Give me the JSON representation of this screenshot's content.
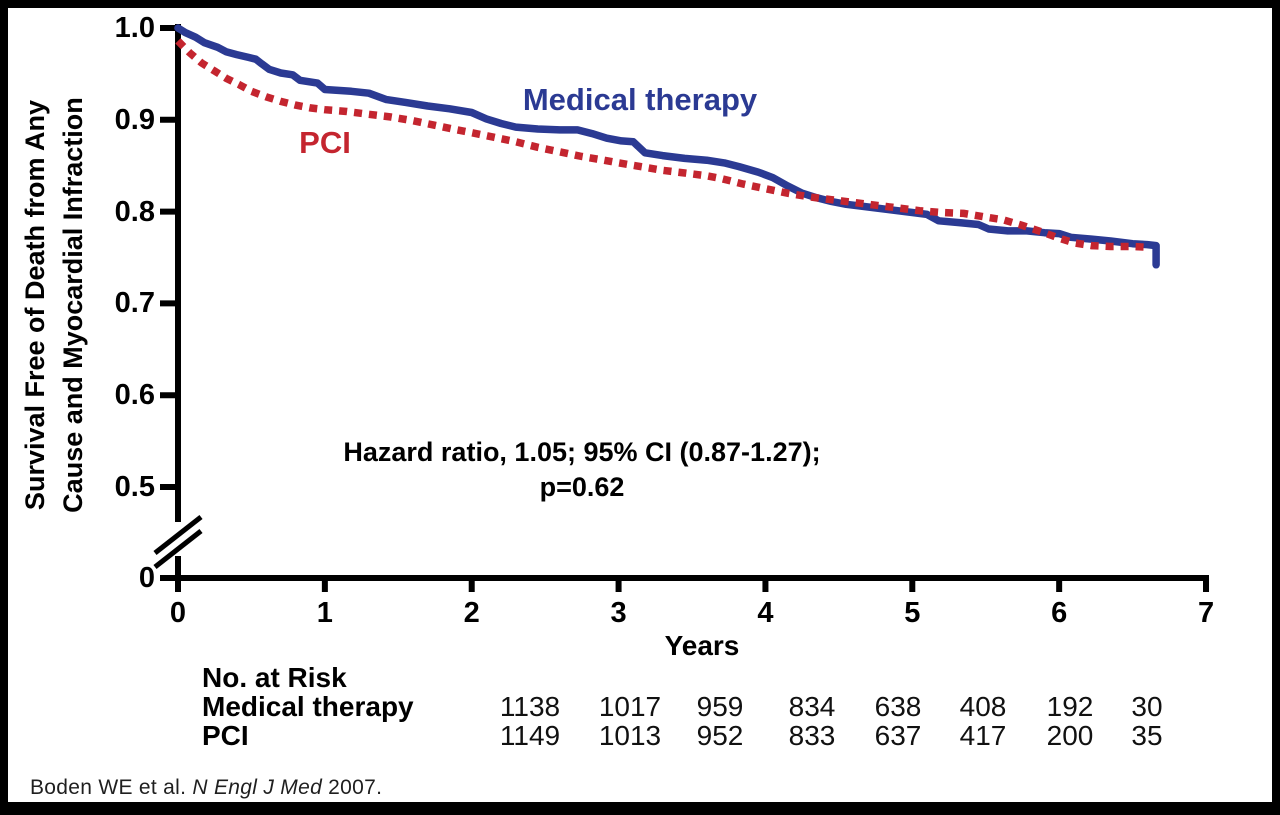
{
  "chart_data": {
    "type": "line",
    "title": "",
    "xlabel": "Years",
    "ylabel_line1": "Survival Free of Death from Any",
    "ylabel_line2": "Cause and Myocardial Infraction",
    "xlim": [
      0,
      7
    ],
    "ylim_displayed": [
      0.5,
      1.0
    ],
    "axis_break_to_zero": true,
    "grid": false,
    "x_tick_labels": [
      "0",
      "1",
      "2",
      "3",
      "4",
      "5",
      "6",
      "7"
    ],
    "y_tick_labels": [
      "1.0",
      "0.9",
      "0.8",
      "0.7",
      "0.6",
      "0.5",
      "0"
    ],
    "annotation_line1": "Hazard ratio, 1.05; 95% CI (0.87-1.27);",
    "annotation_line2": "p=0.62",
    "series": [
      {
        "name": "Medical therapy",
        "color": "#2b3a93",
        "style": "solid",
        "points": [
          [
            0,
            1.0
          ],
          [
            0.05,
            0.995
          ],
          [
            0.12,
            0.99
          ],
          [
            0.18,
            0.984
          ],
          [
            0.27,
            0.979
          ],
          [
            0.33,
            0.974
          ],
          [
            0.4,
            0.971
          ],
          [
            0.48,
            0.968
          ],
          [
            0.53,
            0.966
          ],
          [
            0.57,
            0.961
          ],
          [
            0.62,
            0.955
          ],
          [
            0.7,
            0.951
          ],
          [
            0.78,
            0.949
          ],
          [
            0.83,
            0.943
          ],
          [
            0.95,
            0.94
          ],
          [
            1.0,
            0.933
          ],
          [
            1.18,
            0.931
          ],
          [
            1.3,
            0.929
          ],
          [
            1.42,
            0.922
          ],
          [
            1.55,
            0.919
          ],
          [
            1.7,
            0.915
          ],
          [
            1.85,
            0.912
          ],
          [
            2.0,
            0.908
          ],
          [
            2.1,
            0.901
          ],
          [
            2.2,
            0.896
          ],
          [
            2.3,
            0.892
          ],
          [
            2.45,
            0.89
          ],
          [
            2.6,
            0.889
          ],
          [
            2.72,
            0.889
          ],
          [
            2.82,
            0.885
          ],
          [
            2.92,
            0.88
          ],
          [
            3.02,
            0.877
          ],
          [
            3.1,
            0.876
          ],
          [
            3.18,
            0.864
          ],
          [
            3.3,
            0.861
          ],
          [
            3.45,
            0.858
          ],
          [
            3.6,
            0.856
          ],
          [
            3.72,
            0.853
          ],
          [
            3.82,
            0.849
          ],
          [
            3.95,
            0.843
          ],
          [
            4.05,
            0.837
          ],
          [
            4.15,
            0.828
          ],
          [
            4.25,
            0.82
          ],
          [
            4.35,
            0.815
          ],
          [
            4.45,
            0.811
          ],
          [
            4.55,
            0.808
          ],
          [
            4.7,
            0.805
          ],
          [
            4.85,
            0.802
          ],
          [
            5.0,
            0.799
          ],
          [
            5.1,
            0.797
          ],
          [
            5.18,
            0.79
          ],
          [
            5.32,
            0.788
          ],
          [
            5.45,
            0.786
          ],
          [
            5.52,
            0.781
          ],
          [
            5.65,
            0.779
          ],
          [
            5.78,
            0.779
          ],
          [
            5.9,
            0.777
          ],
          [
            6.0,
            0.776
          ],
          [
            6.08,
            0.772
          ],
          [
            6.22,
            0.77
          ],
          [
            6.35,
            0.768
          ],
          [
            6.5,
            0.765
          ],
          [
            6.6,
            0.764
          ],
          [
            6.66,
            0.763
          ],
          [
            6.66,
            0.742
          ]
        ]
      },
      {
        "name": "PCI",
        "color": "#c4252f",
        "style": "dotted",
        "points": [
          [
            0,
            0.986
          ],
          [
            0.08,
            0.973
          ],
          [
            0.16,
            0.962
          ],
          [
            0.25,
            0.953
          ],
          [
            0.33,
            0.945
          ],
          [
            0.42,
            0.938
          ],
          [
            0.5,
            0.931
          ],
          [
            0.6,
            0.925
          ],
          [
            0.7,
            0.92
          ],
          [
            0.8,
            0.916
          ],
          [
            0.9,
            0.913
          ],
          [
            1.0,
            0.911
          ],
          [
            1.15,
            0.909
          ],
          [
            1.3,
            0.906
          ],
          [
            1.45,
            0.903
          ],
          [
            1.6,
            0.899
          ],
          [
            1.75,
            0.894
          ],
          [
            1.9,
            0.889
          ],
          [
            2.0,
            0.886
          ],
          [
            2.15,
            0.881
          ],
          [
            2.3,
            0.876
          ],
          [
            2.45,
            0.87
          ],
          [
            2.6,
            0.865
          ],
          [
            2.75,
            0.86
          ],
          [
            2.9,
            0.856
          ],
          [
            3.0,
            0.853
          ],
          [
            3.15,
            0.849
          ],
          [
            3.3,
            0.845
          ],
          [
            3.45,
            0.842
          ],
          [
            3.6,
            0.839
          ],
          [
            3.7,
            0.836
          ],
          [
            3.85,
            0.83
          ],
          [
            4.0,
            0.825
          ],
          [
            4.15,
            0.82
          ],
          [
            4.3,
            0.816
          ],
          [
            4.45,
            0.813
          ],
          [
            4.6,
            0.81
          ],
          [
            4.75,
            0.807
          ],
          [
            4.9,
            0.804
          ],
          [
            5.05,
            0.801
          ],
          [
            5.2,
            0.799
          ],
          [
            5.35,
            0.798
          ],
          [
            5.5,
            0.794
          ],
          [
            5.62,
            0.791
          ],
          [
            5.75,
            0.785
          ],
          [
            5.88,
            0.778
          ],
          [
            6.0,
            0.771
          ],
          [
            6.1,
            0.766
          ],
          [
            6.22,
            0.763
          ],
          [
            6.35,
            0.762
          ],
          [
            6.5,
            0.762
          ],
          [
            6.62,
            0.761
          ]
        ]
      }
    ]
  },
  "risk_table": {
    "title": "No. at Risk",
    "rows": [
      {
        "label": "Medical therapy",
        "values": [
          "1138",
          "1017",
          "959",
          "834",
          "638",
          "408",
          "192",
          "30"
        ]
      },
      {
        "label": "PCI",
        "values": [
          "1149",
          "1013",
          "952",
          "833",
          "637",
          "417",
          "200",
          "35"
        ]
      }
    ]
  },
  "citation": {
    "prefix": "Boden WE et al. ",
    "journal": "N Engl J Med",
    "suffix": " 2007."
  }
}
